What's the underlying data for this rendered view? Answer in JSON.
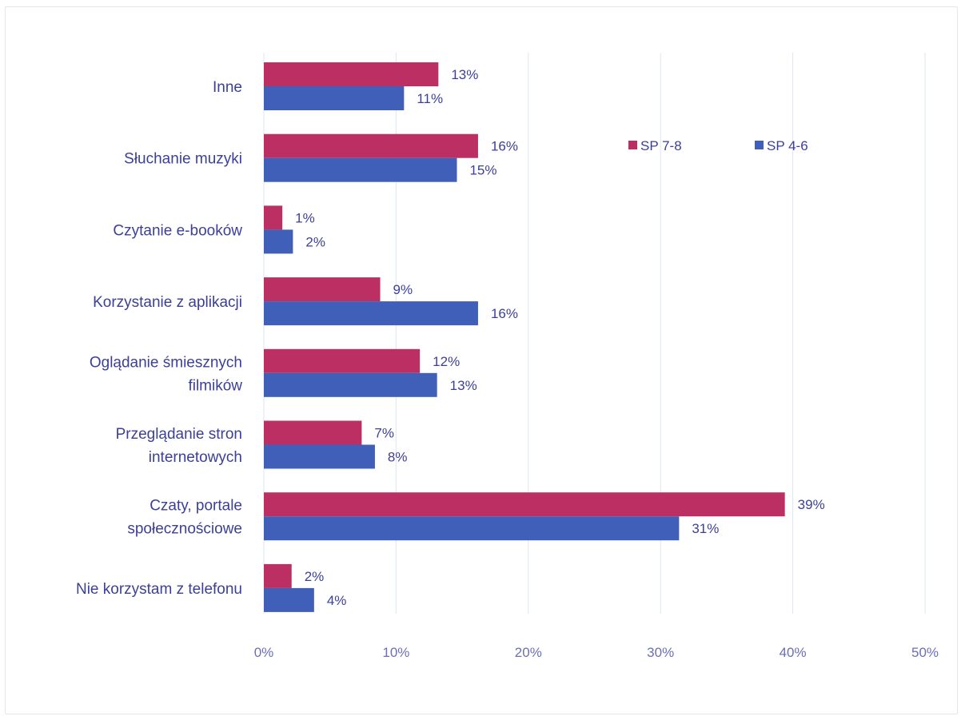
{
  "chart_data": {
    "type": "bar",
    "orientation": "horizontal",
    "categories": [
      "Inne",
      "Słuchanie muzyki",
      "Czytanie e-booków",
      "Korzystanie z aplikacji",
      "Oglądanie śmiesznych filmików",
      "Przeglądanie stron internetowych",
      "Czaty, portale społecznościowe",
      "Nie korzystam z telefonu"
    ],
    "category_lines": [
      [
        "Inne"
      ],
      [
        "Słuchanie muzyki"
      ],
      [
        "Czytanie e-booków"
      ],
      [
        "Korzystanie z aplikacji"
      ],
      [
        "Oglądanie śmiesznych",
        "filmików"
      ],
      [
        "Przeglądanie stron",
        "internetowych"
      ],
      [
        "Czaty, portale",
        "społecznościowe"
      ],
      [
        "Nie korzystam z telefonu"
      ]
    ],
    "series": [
      {
        "name": "SP 7-8",
        "color": "#bb2f63",
        "values": [
          13.2,
          16.2,
          1.4,
          8.8,
          11.8,
          7.4,
          39.4,
          2.1
        ],
        "labels": [
          "13%",
          "16%",
          "1%",
          "9%",
          "12%",
          "7%",
          "39%",
          "2%"
        ]
      },
      {
        "name": "SP 4-6",
        "color": "#3f5fb8",
        "values": [
          10.6,
          14.6,
          2.2,
          16.2,
          13.1,
          8.4,
          31.4,
          3.8
        ],
        "labels": [
          "11%",
          "15%",
          "2%",
          "16%",
          "13%",
          "8%",
          "31%",
          "4%"
        ]
      }
    ],
    "xlim": [
      0,
      50
    ],
    "xticks": [
      "0%",
      "10%",
      "20%",
      "30%",
      "40%",
      "50%"
    ],
    "grid": true,
    "legend_position": "top-right",
    "title": "",
    "xlabel": "",
    "ylabel": ""
  }
}
